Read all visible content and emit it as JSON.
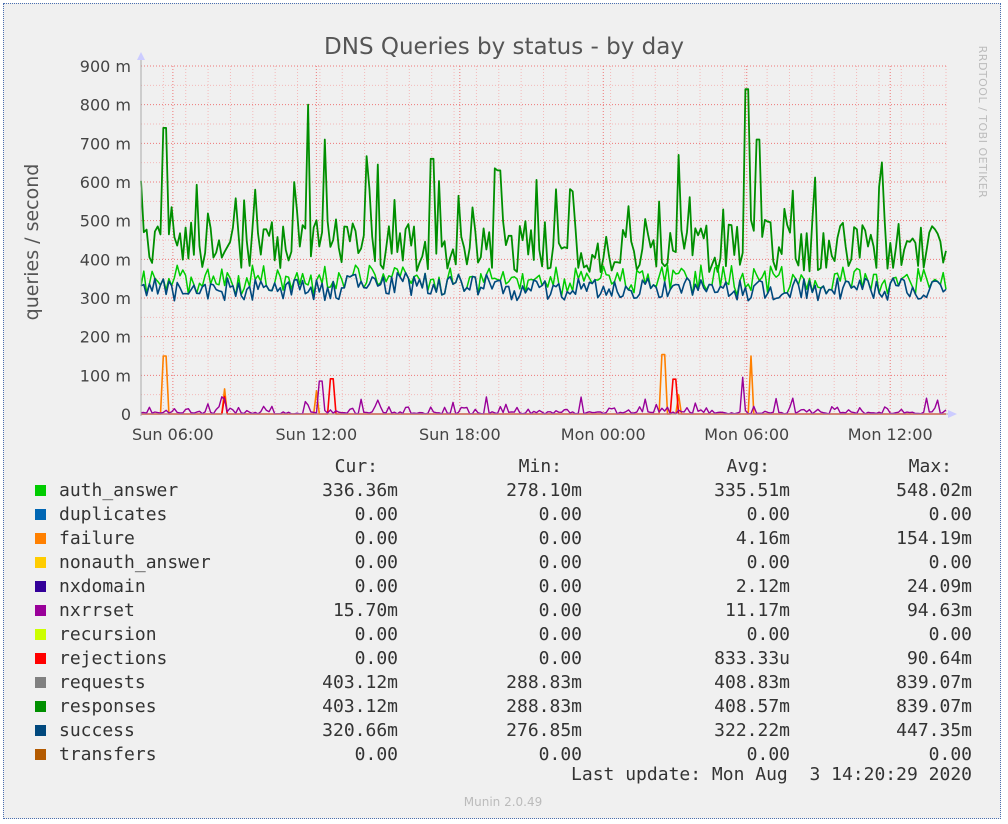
{
  "chart_data": {
    "type": "line",
    "title": "DNS Queries by status - by day",
    "ylabel": "queries / second",
    "watermark": "RRDTOOL / TOBI OETIKER",
    "y_ticks": [
      "900 m",
      "800 m",
      "700 m",
      "600 m",
      "500 m",
      "400 m",
      "300 m",
      "200 m",
      "100 m",
      "0"
    ],
    "y_tick_values": [
      0.9,
      0.8,
      0.7,
      0.6,
      0.5,
      0.4,
      0.3,
      0.2,
      0.1,
      0
    ],
    "ylim": [
      0,
      0.9
    ],
    "x_ticks": [
      "Sun 06:00",
      "Sun 12:00",
      "Sun 18:00",
      "Mon 00:00",
      "Mon 06:00",
      "Mon 12:00"
    ],
    "x_range": [
      "Sun 04:40",
      "Mon 14:20"
    ],
    "grid": true,
    "legend_headers": [
      "Cur:",
      "Min:",
      "Avg:",
      "Max:"
    ],
    "series": [
      {
        "name": "auth_answer",
        "color": "#00cc00",
        "cur": "336.36m",
        "min": "278.10m",
        "avg": "335.51m",
        "max": "548.02m"
      },
      {
        "name": "duplicates",
        "color": "#0066b3",
        "cur": "0.00",
        "min": "0.00",
        "avg": "0.00",
        "max": "0.00"
      },
      {
        "name": "failure",
        "color": "#ff8000",
        "cur": "0.00",
        "min": "0.00",
        "avg": "4.16m",
        "max": "154.19m"
      },
      {
        "name": "nonauth_answer",
        "color": "#ffcc00",
        "cur": "0.00",
        "min": "0.00",
        "avg": "0.00",
        "max": "0.00"
      },
      {
        "name": "nxdomain",
        "color": "#330099",
        "cur": "0.00",
        "min": "0.00",
        "avg": "2.12m",
        "max": "24.09m"
      },
      {
        "name": "nxrrset",
        "color": "#990099",
        "cur": "15.70m",
        "min": "0.00",
        "avg": "11.17m",
        "max": "94.63m"
      },
      {
        "name": "recursion",
        "color": "#ccff00",
        "cur": "0.00",
        "min": "0.00",
        "avg": "0.00",
        "max": "0.00"
      },
      {
        "name": "rejections",
        "color": "#ff0000",
        "cur": "0.00",
        "min": "0.00",
        "avg": "833.33u",
        "max": "90.64m"
      },
      {
        "name": "requests",
        "color": "#808080",
        "cur": "403.12m",
        "min": "288.83m",
        "avg": "408.83m",
        "max": "839.07m"
      },
      {
        "name": "responses",
        "color": "#008f00",
        "cur": "403.12m",
        "min": "288.83m",
        "avg": "408.57m",
        "max": "839.07m"
      },
      {
        "name": "success",
        "color": "#00487d",
        "cur": "320.66m",
        "min": "276.85m",
        "avg": "322.22m",
        "max": "447.35m"
      },
      {
        "name": "transfers",
        "color": "#b35a00",
        "cur": "0.00",
        "min": "0.00",
        "avg": "0.00",
        "max": "0.00"
      }
    ],
    "spikes": {
      "responses": [
        {
          "x": "Sun 05:40",
          "y": 0.74
        },
        {
          "x": "Sun 11:40",
          "y": 0.8
        },
        {
          "x": "Sun 12:20",
          "y": 0.71
        },
        {
          "x": "Sun 16:50",
          "y": 0.66
        },
        {
          "x": "Sun 19:40",
          "y": 0.63
        },
        {
          "x": "Mon 03:10",
          "y": 0.67
        },
        {
          "x": "Mon 06:00",
          "y": 0.84
        },
        {
          "x": "Mon 06:30",
          "y": 0.71
        }
      ],
      "failure": [
        {
          "x": "Sun 05:40",
          "y": 0.15
        },
        {
          "x": "Sun 08:10",
          "y": 0.065
        },
        {
          "x": "Sun 12:00",
          "y": 0.06
        },
        {
          "x": "Mon 02:30",
          "y": 0.154
        },
        {
          "x": "Mon 03:10",
          "y": 0.05
        },
        {
          "x": "Mon 06:10",
          "y": 0.15
        }
      ],
      "rejections": [
        {
          "x": "Sun 08:10",
          "y": 0.045
        },
        {
          "x": "Sun 12:40",
          "y": 0.091
        },
        {
          "x": "Mon 03:00",
          "y": 0.09
        }
      ],
      "nxrrset": [
        {
          "x": "Sun 12:10",
          "y": 0.085
        },
        {
          "x": "Mon 05:50",
          "y": 0.095
        }
      ]
    },
    "last_update": "Last update: Mon Aug  3 14:20:29 2020",
    "footer": "Munin 2.0.49"
  }
}
